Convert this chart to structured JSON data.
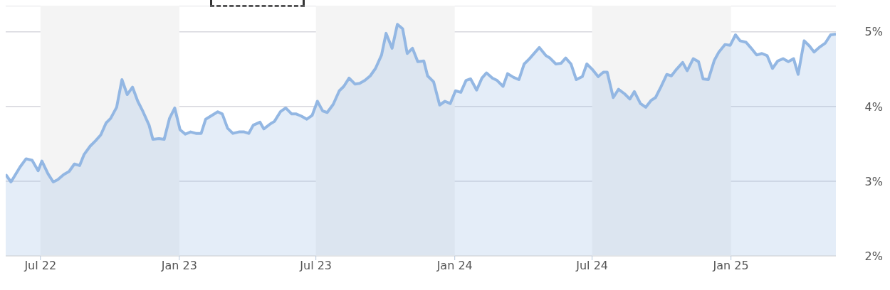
{
  "chart_data": {
    "type": "area",
    "x": [
      "2022-05-16",
      "2022-05-23",
      "2022-06-04",
      "2022-06-12",
      "2022-06-20",
      "2022-06-28",
      "2022-07-03",
      "2022-07-11",
      "2022-07-18",
      "2022-07-24",
      "2022-08-01",
      "2022-08-08",
      "2022-08-15",
      "2022-08-22",
      "2022-08-28",
      "2022-09-05",
      "2022-09-12",
      "2022-09-19",
      "2022-09-26",
      "2022-10-02",
      "2022-10-10",
      "2022-10-17",
      "2022-10-24",
      "2022-10-31",
      "2022-11-07",
      "2022-11-14",
      "2022-11-22",
      "2022-11-27",
      "2022-12-05",
      "2022-12-12",
      "2022-12-19",
      "2022-12-26",
      "2023-01-02",
      "2023-01-09",
      "2023-01-16",
      "2023-01-23",
      "2023-01-30",
      "2023-02-05",
      "2023-02-13",
      "2023-02-21",
      "2023-02-27",
      "2023-03-06",
      "2023-03-13",
      "2023-03-21",
      "2023-03-28",
      "2023-04-03",
      "2023-04-09",
      "2023-04-18",
      "2023-04-23",
      "2023-05-02",
      "2023-05-07",
      "2023-05-15",
      "2023-05-22",
      "2023-05-30",
      "2023-06-05",
      "2023-06-12",
      "2023-06-19",
      "2023-06-26",
      "2023-07-03",
      "2023-07-10",
      "2023-07-16",
      "2023-07-24",
      "2023-08-01",
      "2023-08-07",
      "2023-08-14",
      "2023-08-22",
      "2023-08-28",
      "2023-09-04",
      "2023-09-11",
      "2023-09-18",
      "2023-09-26",
      "2023-10-02",
      "2023-10-10",
      "2023-10-17",
      "2023-10-24",
      "2023-10-30",
      "2023-11-06",
      "2023-11-13",
      "2023-11-21",
      "2023-11-26",
      "2023-12-04",
      "2023-12-12",
      "2023-12-19",
      "2023-12-26",
      "2024-01-02",
      "2024-01-09",
      "2024-01-16",
      "2024-01-22",
      "2024-01-30",
      "2024-02-06",
      "2024-02-12",
      "2024-02-20",
      "2024-02-26",
      "2024-03-05",
      "2024-03-11",
      "2024-03-19",
      "2024-03-26",
      "2024-04-02",
      "2024-04-09",
      "2024-04-16",
      "2024-04-22",
      "2024-05-01",
      "2024-05-06",
      "2024-05-14",
      "2024-05-21",
      "2024-05-27",
      "2024-06-03",
      "2024-06-10",
      "2024-06-18",
      "2024-06-24",
      "2024-07-01",
      "2024-07-09",
      "2024-07-16",
      "2024-07-21",
      "2024-07-29",
      "2024-08-05",
      "2024-08-13",
      "2024-08-20",
      "2024-08-26",
      "2024-09-03",
      "2024-09-10",
      "2024-09-17",
      "2024-09-23",
      "2024-09-30",
      "2024-10-08",
      "2024-10-14",
      "2024-10-21",
      "2024-10-29",
      "2024-11-04",
      "2024-11-12",
      "2024-11-19",
      "2024-11-25",
      "2024-12-02",
      "2024-12-10",
      "2024-12-16",
      "2024-12-24",
      "2024-12-31",
      "2025-01-07",
      "2025-01-13",
      "2025-01-21",
      "2025-01-27",
      "2025-02-04",
      "2025-02-11",
      "2025-02-18",
      "2025-02-25",
      "2025-03-04",
      "2025-03-11",
      "2025-03-18",
      "2025-03-25",
      "2025-03-31",
      "2025-04-08",
      "2025-04-15",
      "2025-04-21",
      "2025-04-29",
      "2025-05-06",
      "2025-05-13",
      "2025-05-20"
    ],
    "series": [
      {
        "color": "#93b7e3",
        "values": [
          3.09,
          2.99,
          3.19,
          3.3,
          3.28,
          3.14,
          3.27,
          3.1,
          2.99,
          3.02,
          3.09,
          3.13,
          3.23,
          3.21,
          3.36,
          3.47,
          3.54,
          3.62,
          3.78,
          3.84,
          3.99,
          4.36,
          4.16,
          4.26,
          4.07,
          3.93,
          3.75,
          3.56,
          3.57,
          3.56,
          3.84,
          3.98,
          3.69,
          3.63,
          3.66,
          3.64,
          3.64,
          3.83,
          3.88,
          3.93,
          3.9,
          3.71,
          3.64,
          3.66,
          3.66,
          3.64,
          3.75,
          3.79,
          3.7,
          3.77,
          3.8,
          3.93,
          3.98,
          3.9,
          3.9,
          3.87,
          3.83,
          3.88,
          4.07,
          3.94,
          3.92,
          4.03,
          4.21,
          4.27,
          4.38,
          4.3,
          4.31,
          4.35,
          4.41,
          4.51,
          4.69,
          4.98,
          4.78,
          5.1,
          5.04,
          4.71,
          4.78,
          4.6,
          4.61,
          4.41,
          4.33,
          4.02,
          4.07,
          4.04,
          4.21,
          4.19,
          4.35,
          4.37,
          4.22,
          4.38,
          4.45,
          4.38,
          4.35,
          4.27,
          4.44,
          4.39,
          4.36,
          4.57,
          4.64,
          4.72,
          4.79,
          4.68,
          4.65,
          4.57,
          4.58,
          4.65,
          4.57,
          4.36,
          4.4,
          4.57,
          4.5,
          4.4,
          4.46,
          4.46,
          4.12,
          4.23,
          4.17,
          4.1,
          4.2,
          4.04,
          3.99,
          4.08,
          4.12,
          4.26,
          4.43,
          4.41,
          4.5,
          4.59,
          4.48,
          4.64,
          4.6,
          4.37,
          4.36,
          4.62,
          4.73,
          4.83,
          4.82,
          4.96,
          4.88,
          4.86,
          4.79,
          4.69,
          4.71,
          4.68,
          4.51,
          4.61,
          4.64,
          4.6,
          4.64,
          4.43,
          4.88,
          4.81,
          4.73,
          4.8,
          4.85,
          4.96,
          4.97
        ]
      }
    ],
    "xlim": [
      "2022-05-16",
      "2025-05-20"
    ],
    "xticks": [
      {
        "value": "2022-07-01",
        "label": "Jul 22"
      },
      {
        "value": "2023-01-01",
        "label": "Jan 23"
      },
      {
        "value": "2023-07-01",
        "label": "Jul 23"
      },
      {
        "value": "2024-01-01",
        "label": "Jan 24"
      },
      {
        "value": "2024-07-01",
        "label": "Jul 24"
      },
      {
        "value": "2025-01-01",
        "label": "Jan 25"
      }
    ],
    "ylim": [
      2,
      5.35
    ],
    "yticks": [
      {
        "value": 2,
        "label": "2%"
      },
      {
        "value": 3,
        "label": "3%"
      },
      {
        "value": 4,
        "label": "4%"
      },
      {
        "value": 5,
        "label": "5%"
      }
    ],
    "bands": [
      {
        "axis": "x",
        "from": "2022-07-01",
        "to": "2023-01-01",
        "color": "#f4f4f4"
      },
      {
        "axis": "x",
        "from": "2023-07-01",
        "to": "2024-01-01",
        "color": "#f4f4f4"
      },
      {
        "axis": "x",
        "from": "2024-07-01",
        "to": "2025-01-01",
        "color": "#f4f4f4"
      }
    ],
    "grid": "y",
    "legend": false,
    "marker": "none",
    "line_style": "solid"
  }
}
